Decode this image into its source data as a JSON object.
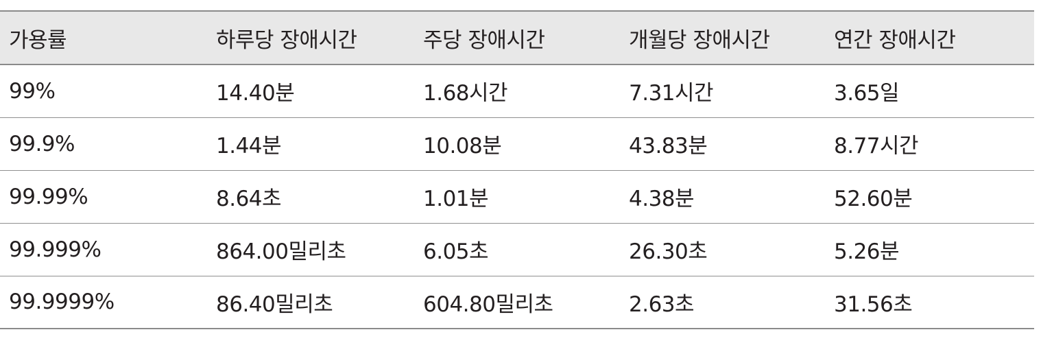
{
  "table": {
    "headers": [
      "가용률",
      "하루당 장애시간",
      "주당 장애시간",
      "개월당 장애시간",
      "연간 장애시간"
    ],
    "rows": [
      [
        "99%",
        "14.40분",
        "1.68시간",
        "7.31시간",
        "3.65일"
      ],
      [
        "99.9%",
        "1.44분",
        "10.08분",
        "43.83분",
        "8.77시간"
      ],
      [
        "99.99%",
        "8.64초",
        "1.01분",
        "4.38분",
        "52.60분"
      ],
      [
        "99.999%",
        "864.00밀리초",
        "6.05초",
        "26.30초",
        "5.26분"
      ],
      [
        "99.9999%",
        "86.40밀리초",
        "604.80밀리초",
        "2.63초",
        "31.56초"
      ]
    ]
  }
}
